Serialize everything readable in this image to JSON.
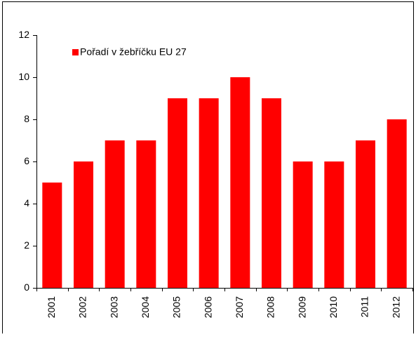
{
  "chart_data": {
    "type": "bar",
    "categories": [
      "2001",
      "2002",
      "2003",
      "2004",
      "2005",
      "2006",
      "2007",
      "2008",
      "2009",
      "2010",
      "2011",
      "2012"
    ],
    "series": [
      {
        "name": "Pořadí v žebříčku EU 27",
        "color": "#ff0000",
        "values": [
          5,
          6,
          7,
          7,
          9,
          9,
          10,
          9,
          6,
          6,
          7,
          8
        ]
      }
    ],
    "ylim": [
      0,
      12
    ],
    "yticks": [
      0,
      2,
      4,
      6,
      8,
      10,
      12
    ],
    "grid": false,
    "legend": "top-left"
  }
}
